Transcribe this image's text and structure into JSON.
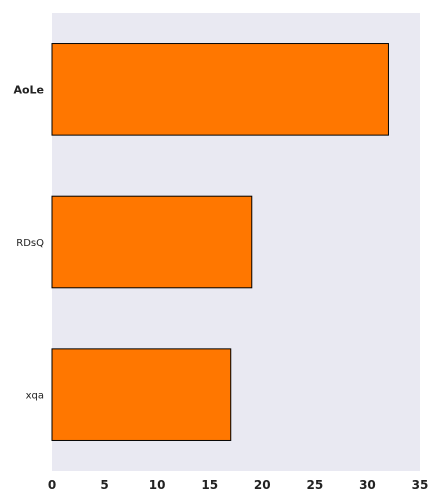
{
  "chart_data": {
    "type": "bar",
    "orientation": "horizontal",
    "categories": [
      "AoLe",
      "RDsQ",
      "xqa"
    ],
    "values": [
      32,
      19,
      17
    ],
    "bold_categories": [
      "AoLe"
    ],
    "xlim": [
      0,
      35
    ],
    "xticks": [
      0,
      5,
      10,
      15,
      20,
      25,
      30,
      35
    ],
    "title": "",
    "xlabel": "",
    "ylabel": "",
    "grid": false,
    "colors": {
      "background": "#e9e9f2",
      "bar_fill": "#ff7700",
      "bar_edge": "#000000"
    }
  }
}
